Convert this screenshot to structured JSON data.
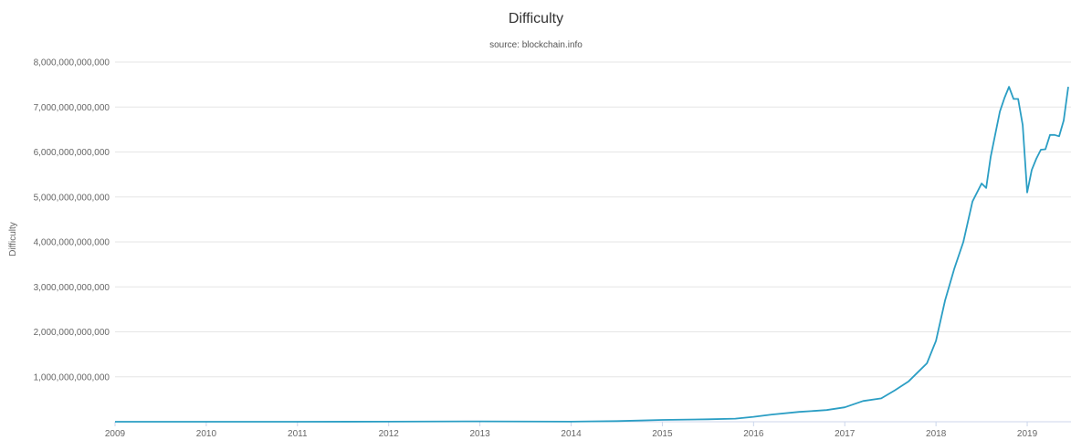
{
  "chart_data": {
    "type": "line",
    "title": "Difficulty",
    "subtitle": "source: blockchain.info",
    "ylabel": "Difficulty",
    "xlabel": "",
    "xlim": [
      2009.0,
      2019.48
    ],
    "ylim": [
      0,
      8000000000000
    ],
    "yticks": [
      1000000000000,
      2000000000000,
      3000000000000,
      4000000000000,
      5000000000000,
      6000000000000,
      7000000000000,
      8000000000000
    ],
    "ytick_labels": [
      "1,000,000,000,000",
      "2,000,000,000,000",
      "3,000,000,000,000",
      "4,000,000,000,000",
      "5,000,000,000,000",
      "6,000,000,000,000",
      "7,000,000,000,000",
      "8,000,000,000,000"
    ],
    "xticks": [
      2009,
      2010,
      2011,
      2012,
      2013,
      2014,
      2015,
      2016,
      2017,
      2018,
      2019
    ],
    "xtick_labels": [
      "2009",
      "2010",
      "2011",
      "2012",
      "2013",
      "2014",
      "2015",
      "2016",
      "2017",
      "2018",
      "2019"
    ],
    "grid": true,
    "legend": "none",
    "colors": {
      "line": "#2b9ec4"
    },
    "series": [
      {
        "x": [
          2009.0,
          2010.0,
          2011.0,
          2012.0,
          2013.0,
          2014.0,
          2014.5,
          2015.0,
          2015.5,
          2015.8,
          2016.0,
          2016.2,
          2016.5,
          2016.8,
          2017.0,
          2017.2,
          2017.4,
          2017.55,
          2017.7,
          2017.8,
          2017.9,
          2018.0,
          2018.1,
          2018.2,
          2018.3,
          2018.4,
          2018.5,
          2018.55,
          2018.6,
          2018.65,
          2018.7,
          2018.75,
          2018.8,
          2018.85,
          2018.9,
          2018.95,
          2019.0,
          2019.05,
          2019.1,
          2019.15,
          2019.2,
          2019.25,
          2019.3,
          2019.35,
          2019.4,
          2019.45
        ],
        "y": [
          1,
          1000000,
          15000000,
          1500000000,
          8000000000,
          2000000000,
          15000000000,
          40000000000,
          55000000000,
          70000000000,
          110000000000,
          160000000000,
          220000000000,
          260000000000,
          320000000000,
          460000000000,
          520000000000,
          700000000000,
          900000000000,
          1100000000000,
          1300000000000,
          1800000000000,
          2700000000000,
          3400000000000,
          4000000000000,
          4900000000000,
          5300000000000,
          5200000000000,
          5900000000000,
          6400000000000,
          6900000000000,
          7200000000000,
          7450000000000,
          7180000000000,
          7180000000000,
          6600000000000,
          5100000000000,
          5600000000000,
          5850000000000,
          6050000000000,
          6060000000000,
          6380000000000,
          6380000000000,
          6350000000000,
          6700000000000,
          7450000000000
        ]
      }
    ]
  }
}
